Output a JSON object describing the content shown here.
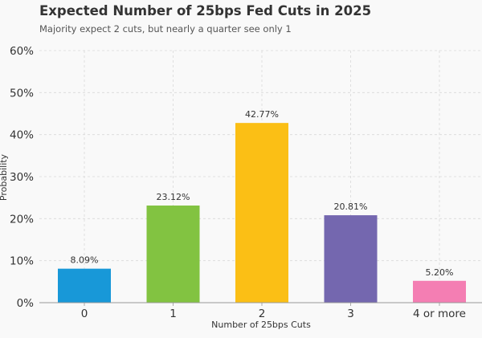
{
  "chart_data": {
    "type": "bar",
    "title": "Expected Number of 25bps Fed Cuts in 2025",
    "subtitle": "Majority expect 2 cuts, but nearly a quarter see only 1",
    "xlabel": "Number of 25bps Cuts",
    "ylabel": "Probability",
    "categories": [
      "0",
      "1",
      "2",
      "3",
      "4 or more"
    ],
    "values": [
      8.09,
      23.12,
      42.77,
      20.81,
      5.2
    ],
    "value_labels": [
      "8.09%",
      "23.12%",
      "42.77%",
      "20.81%",
      "5.20%"
    ],
    "colors": [
      "#1898d8",
      "#82c341",
      "#fbbf15",
      "#7467af",
      "#f47eb3"
    ],
    "ylim": [
      0,
      60
    ],
    "yticks": [
      0,
      10,
      20,
      30,
      40,
      50,
      60
    ],
    "ytick_labels": [
      "0%",
      "10%",
      "20%",
      "30%",
      "40%",
      "50%",
      "60%"
    ],
    "grid": true,
    "grid_color": "#d9d9d9",
    "axis_color": "#999999"
  }
}
